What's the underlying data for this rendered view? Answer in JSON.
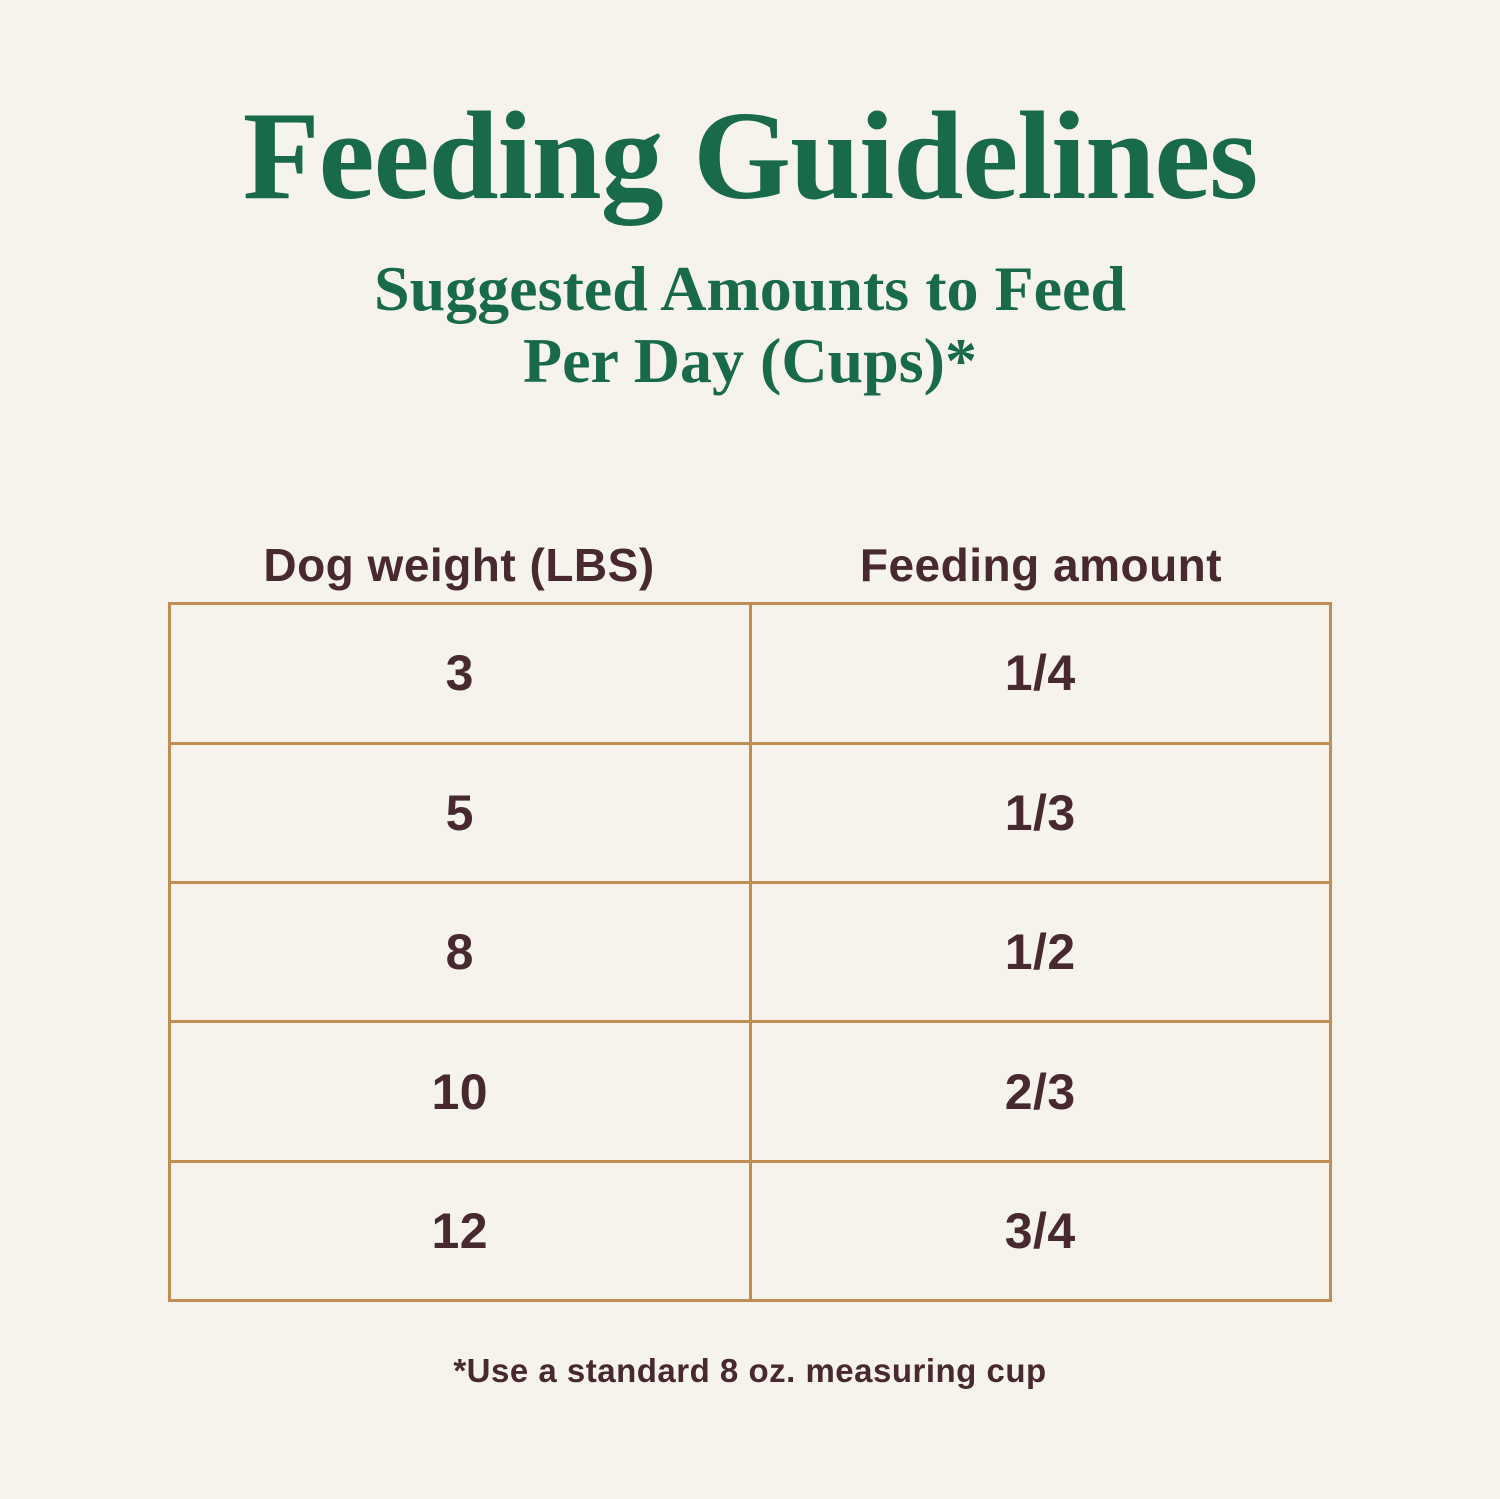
{
  "page": {
    "title": "Feeding Guidelines",
    "subtitle_line1": "Suggested Amounts to Feed",
    "subtitle_line2": "Per Day (Cups)*",
    "footnote": "*Use a standard 8 oz. measuring cup"
  },
  "table": {
    "columns": [
      "Dog weight (LBS)",
      "Feeding amount"
    ],
    "rows": [
      {
        "weight": "3",
        "amount": "1/4"
      },
      {
        "weight": "5",
        "amount": "1/3"
      },
      {
        "weight": "8",
        "amount": "1/2"
      },
      {
        "weight": "10",
        "amount": "2/3"
      },
      {
        "weight": "12",
        "amount": "3/4"
      }
    ]
  },
  "colors": {
    "background": "#f5f3ec",
    "title_green": "#186a4b",
    "text_brown": "#48292f",
    "table_border_tan": "#c08d55"
  },
  "chart_data": {
    "type": "table",
    "title": "Feeding Guidelines",
    "subtitle": "Suggested Amounts to Feed Per Day (Cups)*",
    "columns": [
      "Dog weight (LBS)",
      "Feeding amount"
    ],
    "rows": [
      [
        "3",
        "1/4"
      ],
      [
        "5",
        "1/3"
      ],
      [
        "8",
        "1/2"
      ],
      [
        "10",
        "2/3"
      ],
      [
        "12",
        "3/4"
      ]
    ],
    "footnote": "*Use a standard 8 oz. measuring cup"
  }
}
